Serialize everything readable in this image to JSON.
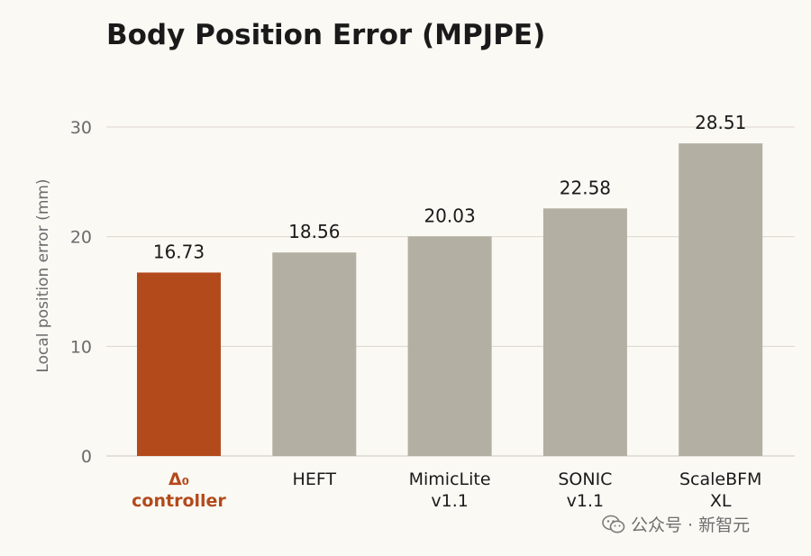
{
  "chart_data": {
    "type": "bar",
    "title": "Body Position Error (MPJPE)",
    "ylabel": "Local position error (mm)",
    "xlabel": "",
    "ylim": [
      0,
      30
    ],
    "yticks": [
      0,
      10,
      20,
      30
    ],
    "grid": true,
    "categories": [
      [
        "Δ₀",
        "controller"
      ],
      [
        "HEFT"
      ],
      [
        "MimicLite",
        "v1.1"
      ],
      [
        "SONIC",
        "v1.1"
      ],
      [
        "ScaleBFM",
        "XL"
      ]
    ],
    "values": [
      16.73,
      18.56,
      20.03,
      22.58,
      28.51
    ],
    "value_labels": [
      "16.73",
      "18.56",
      "20.03",
      "22.58",
      "28.51"
    ],
    "highlight_index": 0,
    "colors": {
      "highlight": "#b34a1c",
      "default": "#b3afa2",
      "grid": "#dcd8ce",
      "text": "#1a1a1a",
      "muted": "#6b6b6b"
    }
  },
  "watermark": {
    "text": "公众号 · 新智元",
    "icon": "wechat-icon"
  }
}
